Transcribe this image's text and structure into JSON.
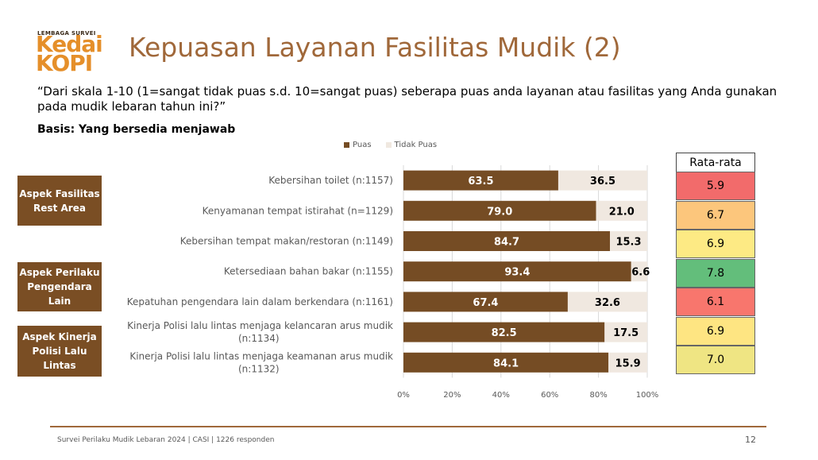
{
  "logo": {
    "line1": "LEMBAGA SURVEI",
    "line2": "Kedai",
    "line3": "KOPI"
  },
  "title": "Kepuasan Layanan Fasilitas Mudik (2)",
  "question": "“Dari skala 1-10 (1=sangat tidak puas s.d. 10=sangat puas) seberapa puas anda layanan atau fasilitas yang Anda gunakan pada mudik lebaran tahun ini?”",
  "basis": "Basis: Yang bersedia menjawab",
  "aspects": [
    "Aspek Fasilitas Rest Area",
    "Aspek Perilaku Pengendara Lain",
    "Aspek Kinerja Polisi Lalu Lintas"
  ],
  "rata_rata": {
    "header": "Rata-rata",
    "values": [
      "5.9",
      "6.7",
      "6.9",
      "7.8",
      "6.1",
      "6.9",
      "7.0"
    ],
    "colors": [
      "#f26b6b",
      "#fcc67c",
      "#fdea84",
      "#63be7b",
      "#f8766d",
      "#fee582",
      "#efe583"
    ]
  },
  "colors": {
    "puas": "#754c24",
    "tidak_puas": "#f0e8e0",
    "accent": "#a0683a"
  },
  "chart_data": {
    "type": "bar",
    "orientation": "horizontal",
    "stacked": true,
    "percent_axis": true,
    "categories": [
      [
        "Kebersihan toilet (n:1157)"
      ],
      [
        "Kenyamanan tempat istirahat (n=1129)"
      ],
      [
        "Kebersihan tempat makan/restoran (n:1149)"
      ],
      [
        "Ketersediaan bahan bakar (n:1155)"
      ],
      [
        "Kepatuhan pengendara lain dalam berkendara (n:1161)"
      ],
      [
        "Kinerja Polisi lalu lintas menjaga kelancaran arus mudik",
        "(n:1134)"
      ],
      [
        "Kinerja Polisi lalu lintas menjaga keamanan arus mudik",
        "(n:1132)"
      ]
    ],
    "series": [
      {
        "name": "Puas",
        "values": [
          63.5,
          79.0,
          84.7,
          93.4,
          67.4,
          82.5,
          84.1
        ]
      },
      {
        "name": "Tidak Puas",
        "values": [
          36.5,
          21.0,
          15.3,
          6.6,
          32.6,
          17.5,
          15.9
        ]
      }
    ],
    "x_ticks": [
      "0%",
      "20%",
      "40%",
      "60%",
      "80%",
      "100%"
    ],
    "xlim": [
      0,
      100
    ],
    "legend": "top"
  },
  "footer": "Survei Perilaku Mudik Lebaran 2024 | CASI | 1226 responden",
  "page_number": "12"
}
